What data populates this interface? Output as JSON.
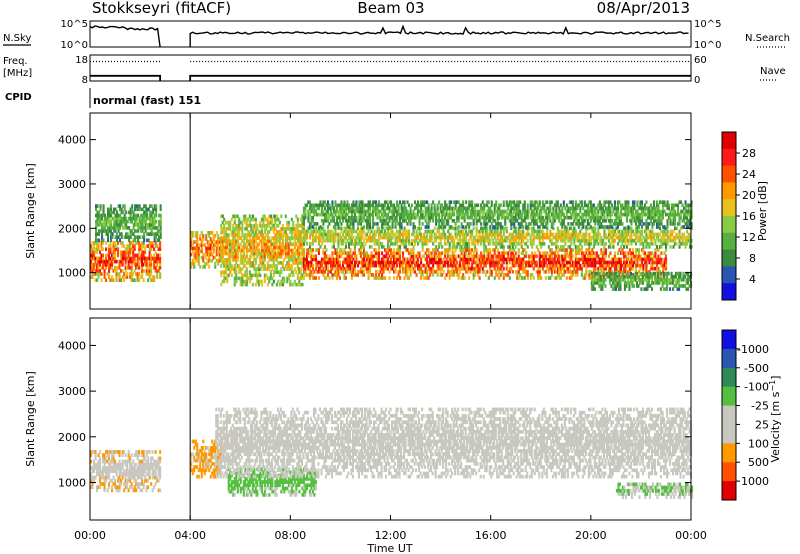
{
  "header": {
    "station": "Stokkseyri (fitACF)",
    "beam": "Beam 03",
    "date": "08/Apr/2013"
  },
  "noise_panel": {
    "left_label": "N.Sky",
    "right_label": "N.Search",
    "left_ticks": [
      "10^5",
      "10^0"
    ],
    "right_ticks": [
      "10^5",
      "10^0"
    ]
  },
  "freq_panel": {
    "left_label_1": "Freq.",
    "left_label_2": "[MHz]",
    "right_label": "Nave",
    "left_ticks": [
      "18",
      "8"
    ],
    "right_ticks": [
      "60",
      "0"
    ],
    "freq_mhz": 10,
    "nave": 45
  },
  "cpid": {
    "label": "CPID",
    "value": "normal (fast) 151"
  },
  "x_axis": {
    "label": "Time UT",
    "ticks": [
      "00:00",
      "04:00",
      "08:00",
      "12:00",
      "16:00",
      "20:00",
      "00:00"
    ]
  },
  "colors": {
    "power": [
      "#1010e0",
      "#2a55b0",
      "#3c8a3c",
      "#55b040",
      "#88cc44",
      "#e8c020",
      "#ff9900",
      "#ff5000",
      "#ff1a1a",
      "#e00000"
    ],
    "velocity": [
      "#e00000",
      "#ff5000",
      "#ff9900",
      "#c8c8c0",
      "#c8c8c0",
      "#55c040",
      "#2e8b57",
      "#2a55b0",
      "#1010e0"
    ],
    "ground_scatter": "#c8c8c0"
  },
  "chart_data": [
    {
      "type": "heatmap",
      "title": "Power",
      "ylabel": "Slant Range [km]",
      "xlabel": "",
      "xlim": [
        0,
        24
      ],
      "ylim": [
        180,
        4600
      ],
      "y_ticks": [
        "1000",
        "2000",
        "3000",
        "4000"
      ],
      "colorbar": {
        "label": "Power [dB]",
        "ticks": [
          "4",
          "8",
          "12",
          "16",
          "20",
          "24",
          "28"
        ],
        "range": [
          0,
          32
        ]
      },
      "data_gap": [
        2.8,
        4.0
      ],
      "bands": [
        {
          "t": [
            0.0,
            2.8
          ],
          "r": [
            800,
            1700
          ],
          "value": 26
        },
        {
          "t": [
            0.2,
            2.8
          ],
          "r": [
            1700,
            2500
          ],
          "value": 12
        },
        {
          "t": [
            4.0,
            5.2
          ],
          "r": [
            1100,
            1900
          ],
          "value": 24
        },
        {
          "t": [
            5.2,
            8.5
          ],
          "r": [
            700,
            2300
          ],
          "value": 20
        },
        {
          "t": [
            8.5,
            23.0
          ],
          "r": [
            850,
            1550
          ],
          "value": 27
        },
        {
          "t": [
            8.5,
            24.0
          ],
          "r": [
            1550,
            2000
          ],
          "value": 18
        },
        {
          "t": [
            8.5,
            24.0
          ],
          "r": [
            2000,
            2600
          ],
          "value": 12
        },
        {
          "t": [
            20.0,
            24.0
          ],
          "r": [
            600,
            1000
          ],
          "value": 12
        }
      ]
    },
    {
      "type": "heatmap",
      "title": "Velocity",
      "ylabel": "Slant Range [km]",
      "xlabel": "Time UT",
      "xlim": [
        0,
        24
      ],
      "ylim": [
        180,
        4600
      ],
      "y_ticks": [
        "1000",
        "2000",
        "3000",
        "4000"
      ],
      "colorbar": {
        "label": "Velocity [m s^-1]",
        "ticks": [
          "1000",
          "500",
          "100",
          "25",
          "-25",
          "-100",
          "-500",
          "-1000"
        ],
        "range": [
          -1200,
          1200
        ]
      },
      "data_gap": [
        2.8,
        4.0
      ],
      "bands": [
        {
          "t": [
            0.0,
            2.8
          ],
          "r": [
            800,
            1700
          ],
          "value": -300
        },
        {
          "t": [
            4.0,
            5.2
          ],
          "r": [
            1100,
            1900
          ],
          "value": -400
        },
        {
          "t": [
            5.5,
            9.0
          ],
          "r": [
            700,
            1300
          ],
          "value": 200
        },
        {
          "t": [
            5.0,
            24.0
          ],
          "r": [
            1100,
            2600
          ],
          "value": 0
        },
        {
          "t": [
            21.0,
            24.0
          ],
          "r": [
            650,
            1000
          ],
          "value": 150
        }
      ]
    }
  ]
}
